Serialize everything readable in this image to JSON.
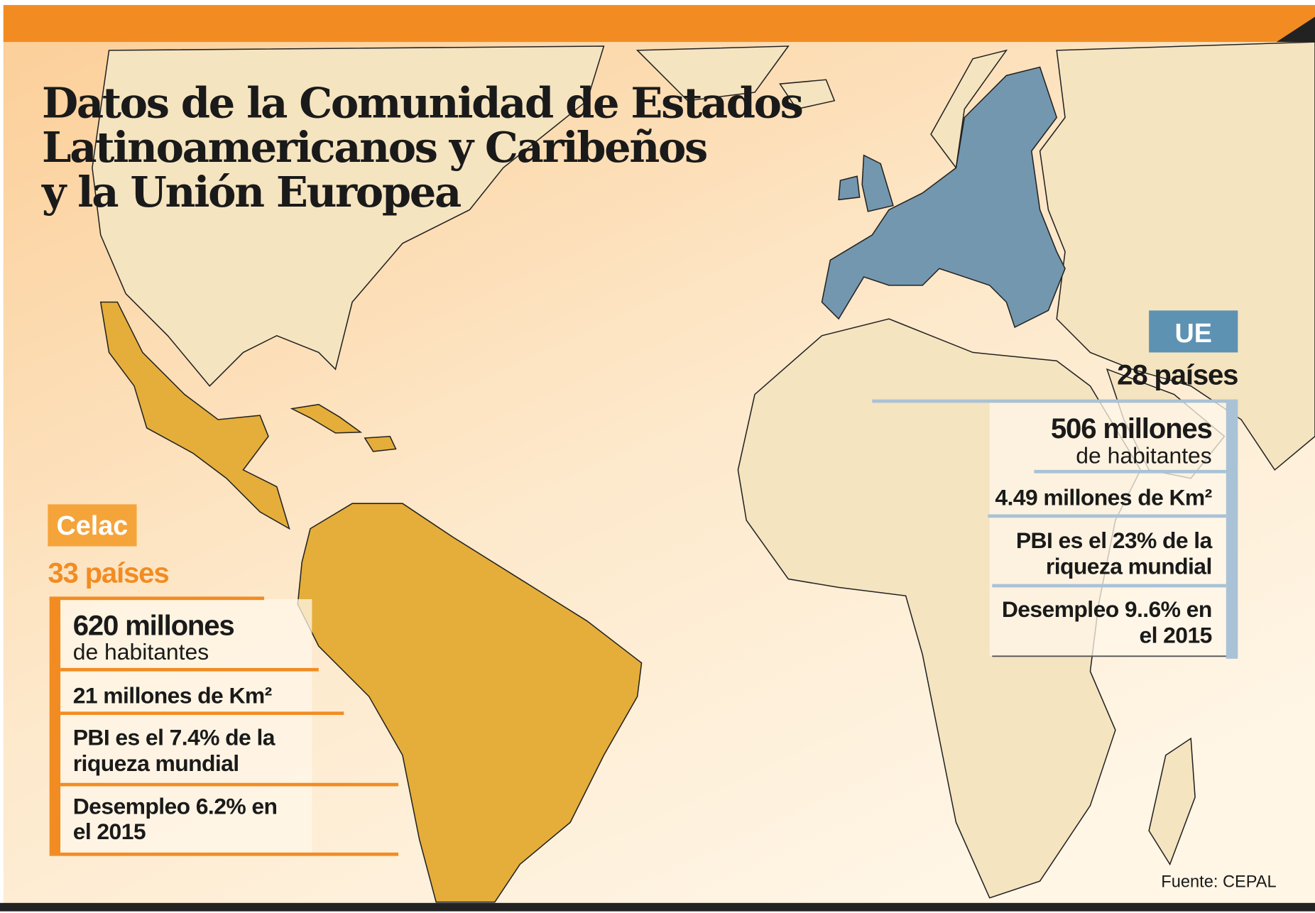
{
  "title": [
    "Datos de la Comunidad de Estados",
    "Latinoamericanos y Caribeños",
    "y la Unión Europea"
  ],
  "celac": {
    "label": "Celac",
    "countries": "33 países",
    "population": "620 millones",
    "population_unit": "de habitantes",
    "area": "21 millones de Km²",
    "gdp": [
      "PBI es el 7.4% de la",
      "riqueza mundial"
    ],
    "unemployment": [
      "Desempleo 6.2% en",
      "el 2015"
    ]
  },
  "ue": {
    "label": "UE",
    "countries": "28 países",
    "population": "506 millones",
    "population_unit": "de habitantes",
    "area": "4.49 millones de Km²",
    "gdp": [
      "PBI es el 23% de la",
      "riqueza mundial"
    ],
    "unemployment": [
      "Desempleo 9..6% en",
      "el 2015"
    ]
  },
  "source": "Fuente: CEPAL"
}
